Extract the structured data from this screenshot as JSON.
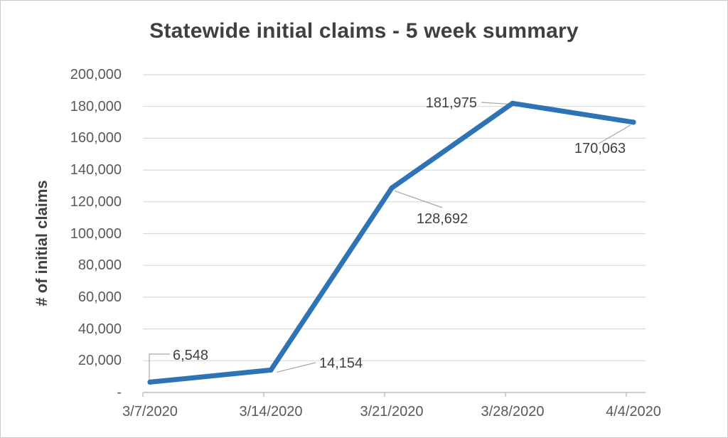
{
  "chart_data": {
    "type": "line",
    "title": "Statewide initial claims - 5 week summary",
    "ylabel": "# of initial claims",
    "xlabel": "",
    "categories": [
      "3/7/2020",
      "3/14/2020",
      "3/21/2020",
      "3/28/2020",
      "4/4/2020"
    ],
    "series": [
      {
        "name": "initial claims",
        "values": [
          6548,
          14154,
          128692,
          181975,
          170063
        ]
      }
    ],
    "data_labels": [
      "6,548",
      "14,154",
      "128,692",
      "181,975",
      "170,063"
    ],
    "y_axis": {
      "min": 0,
      "max": 200000,
      "step": 20000,
      "tick_labels_top_to_bottom": [
        "200,000",
        "180,000",
        "160,000",
        "140,000",
        "120,000",
        "100,000",
        "80,000",
        "60,000",
        "40,000",
        "20,000",
        "-"
      ]
    },
    "grid": "horizontal-only",
    "legend": "none",
    "colors": {
      "line": "#2e74b5",
      "gridline": "#d9d9d9",
      "axis_line": "#bdbdbd",
      "leader_line": "#a6a6a6",
      "title_text": "#404040",
      "axis_text": "#595959",
      "data_label_text": "#404040",
      "frame_border": "#c9c9c9",
      "background": "#ffffff"
    }
  }
}
